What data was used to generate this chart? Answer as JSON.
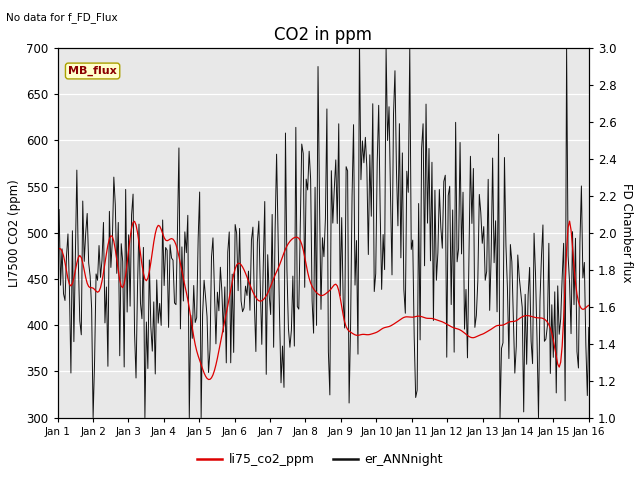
{
  "title": "CO2 in ppm",
  "ylabel_left": "LI7500 CO2 (ppm)",
  "ylabel_right": "FD Chamber flux",
  "ylim_left": [
    300,
    700
  ],
  "ylim_right": [
    1.0,
    3.0
  ],
  "no_data_text": "No data for f_FD_Flux",
  "mb_flux_label": "MB_flux",
  "legend_items": [
    "li75_co2_ppm",
    "er_ANNnight"
  ],
  "legend_colors": [
    "#dd0000",
    "#111111"
  ],
  "background_color": "#e8e8e8",
  "fig_background": "#ffffff",
  "title_fontsize": 12,
  "axis_fontsize": 9,
  "x_tick_labels": [
    "Jan 1",
    "Jan 2",
    "Jan 3",
    "Jan 4",
    "Jan 5",
    "Jan 6",
    "Jan 7",
    "Jan 8",
    "Jan 9",
    "Jan 10",
    "Jan 11",
    "Jan 12",
    "Jan 13",
    "Jan 14",
    "Jan 15",
    "Jan 16"
  ],
  "yticks_left": [
    300,
    350,
    400,
    450,
    500,
    550,
    600,
    650,
    700
  ],
  "yticks_right": [
    1.0,
    1.2,
    1.4,
    1.6,
    1.8,
    2.0,
    2.2,
    2.4,
    2.6,
    2.8,
    3.0
  ]
}
